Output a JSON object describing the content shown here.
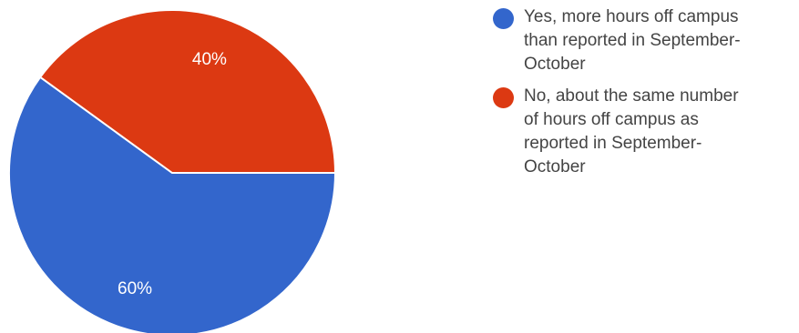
{
  "chart_data": {
    "type": "pie",
    "slices": [
      {
        "label": "Yes, more hours off campus than reported in September-October",
        "value": 60,
        "value_label": "60%",
        "color": "#3366cc"
      },
      {
        "label": "No, about the same number of hours off campus as reported in September-October",
        "value": 40,
        "value_label": "40%",
        "color": "#dc3912"
      }
    ],
    "start_angle": "3 o'clock",
    "direction": "clockwise",
    "legend_position": "right"
  },
  "legend": {
    "items": [
      {
        "text_lines": [
          "Yes, more hours off campus",
          "than reported in September-",
          "October"
        ],
        "color": "#3366cc"
      },
      {
        "text_lines": [
          "No, about the same number",
          "of hours off campus as",
          "reported in September-",
          "October"
        ],
        "color": "#dc3912"
      }
    ]
  }
}
